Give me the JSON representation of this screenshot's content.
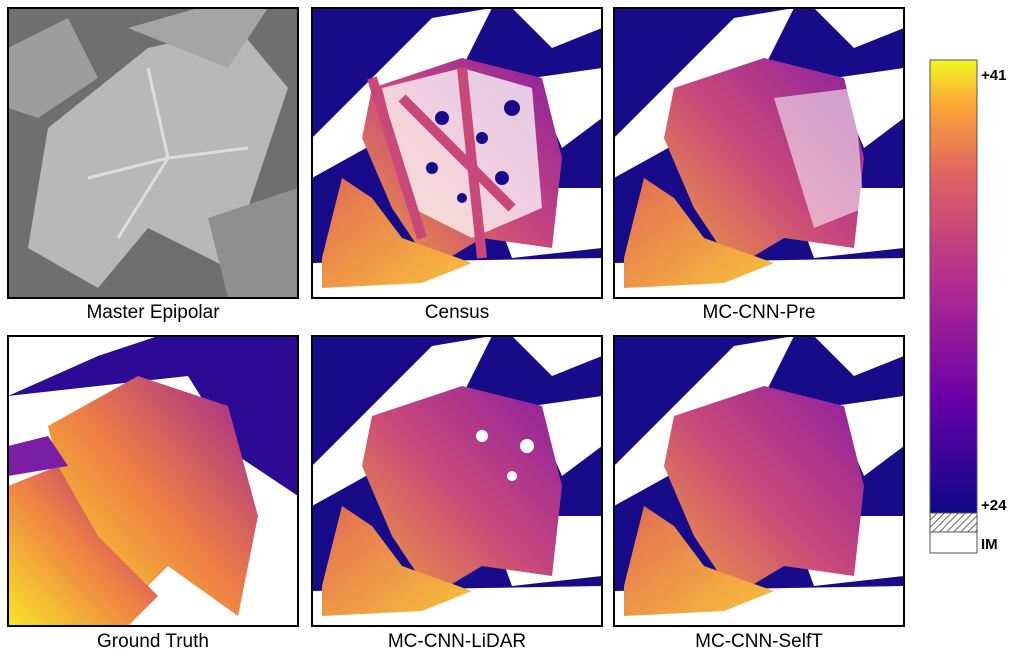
{
  "panels": [
    {
      "label": "Master Epipolar"
    },
    {
      "label": "Census"
    },
    {
      "label": "MC-CNN-Pre"
    },
    {
      "label": "Ground Truth"
    },
    {
      "label": "MC-CNN-LiDAR"
    },
    {
      "label": "MC-CNN-SelfT"
    }
  ],
  "colorbar": {
    "max_label": "+41",
    "min_label": "+24",
    "invalid_label": "IM"
  }
}
